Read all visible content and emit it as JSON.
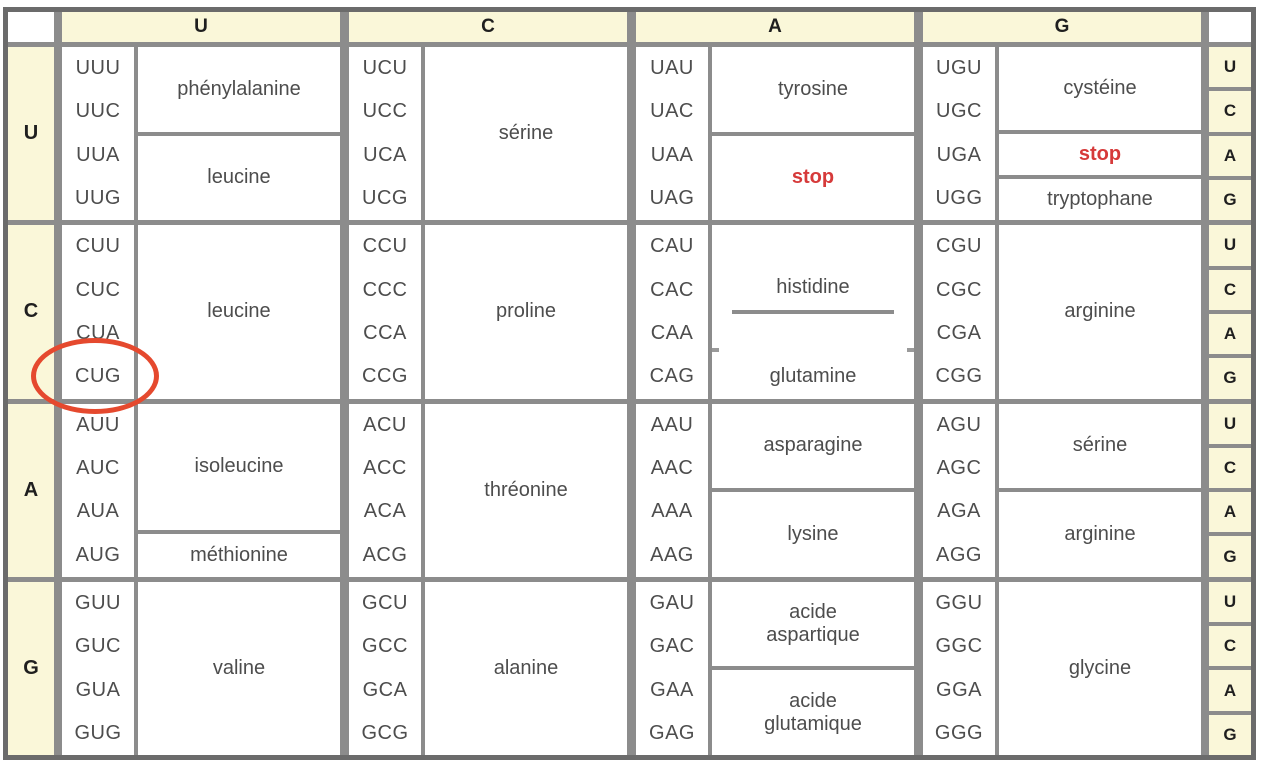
{
  "colors": {
    "header_bg": "#faf7d9",
    "grid": "#8c8c8c",
    "outer_border": "#6b6b6b",
    "text": "#4d4d4d",
    "header_text": "#1f1f1f",
    "stop_red": "#d63a3a",
    "ellipse_red": "#e5492e",
    "cell_bg": "#ffffff"
  },
  "second_bases": [
    "U",
    "C",
    "A",
    "G"
  ],
  "third_bases": [
    "U",
    "C",
    "A",
    "G"
  ],
  "rows": [
    {
      "base": "U",
      "groups": [
        {
          "codons": [
            "UUU",
            "UUC",
            "UUA",
            "UUG"
          ],
          "aminos": [
            {
              "label": "phénylalanine"
            },
            {
              "label": "leucine"
            }
          ]
        },
        {
          "codons": [
            "UCU",
            "UCC",
            "UCA",
            "UCG"
          ],
          "aminos": [
            {
              "label": "sérine"
            }
          ]
        },
        {
          "codons": [
            "UAU",
            "UAC",
            "UAA",
            "UAG"
          ],
          "aminos": [
            {
              "label": "tyrosine"
            },
            {
              "label": "stop"
            }
          ]
        },
        {
          "codons": [
            "UGU",
            "UGC",
            "UGA",
            "UGG"
          ],
          "aminos": [
            {
              "label": "cystéine"
            },
            {
              "label": "stop"
            },
            {
              "label": "tryptophane"
            }
          ]
        }
      ]
    },
    {
      "base": "C",
      "groups": [
        {
          "codons": [
            "CUU",
            "CUC",
            "CUA",
            "CUG"
          ],
          "aminos": [
            {
              "label": "leucine"
            }
          ]
        },
        {
          "codons": [
            "CCU",
            "CCC",
            "CCA",
            "CCG"
          ],
          "aminos": [
            {
              "label": "proline"
            }
          ]
        },
        {
          "codons": [
            "CAU",
            "CAC",
            "CAA",
            "CAG"
          ],
          "aminos": [
            {
              "label": "histidine"
            },
            {
              "label": "glutamine"
            }
          ]
        },
        {
          "codons": [
            "CGU",
            "CGC",
            "CGA",
            "CGG"
          ],
          "aminos": [
            {
              "label": "arginine"
            }
          ]
        }
      ]
    },
    {
      "base": "A",
      "groups": [
        {
          "codons": [
            "AUU",
            "AUC",
            "AUA",
            "AUG"
          ],
          "aminos": [
            {
              "label": "isoleucine"
            },
            {
              "label": "méthionine"
            }
          ]
        },
        {
          "codons": [
            "ACU",
            "ACC",
            "ACA",
            "ACG"
          ],
          "aminos": [
            {
              "label": "thréonine"
            }
          ]
        },
        {
          "codons": [
            "AAU",
            "AAC",
            "AAA",
            "AAG"
          ],
          "aminos": [
            {
              "label": "asparagine"
            },
            {
              "label": "lysine"
            }
          ]
        },
        {
          "codons": [
            "AGU",
            "AGC",
            "AGA",
            "AGG"
          ],
          "aminos": [
            {
              "label": "sérine"
            },
            {
              "label": "arginine"
            }
          ]
        }
      ]
    },
    {
      "base": "G",
      "groups": [
        {
          "codons": [
            "GUU",
            "GUC",
            "GUA",
            "GUG"
          ],
          "aminos": [
            {
              "label": "valine"
            }
          ]
        },
        {
          "codons": [
            "GCU",
            "GCC",
            "GCA",
            "GCG"
          ],
          "aminos": [
            {
              "label": "alanine"
            }
          ]
        },
        {
          "codons": [
            "GAU",
            "GAC",
            "GAA",
            "GAG"
          ],
          "aminos": [
            {
              "label": "acide\naspartique"
            },
            {
              "label": "acide\nglutamique"
            }
          ]
        },
        {
          "codons": [
            "GGU",
            "GGC",
            "GGA",
            "GGG"
          ],
          "aminos": [
            {
              "label": "glycine"
            }
          ]
        }
      ]
    }
  ],
  "annotation": {
    "shape": "ellipse",
    "circled_codon": "CUG"
  }
}
